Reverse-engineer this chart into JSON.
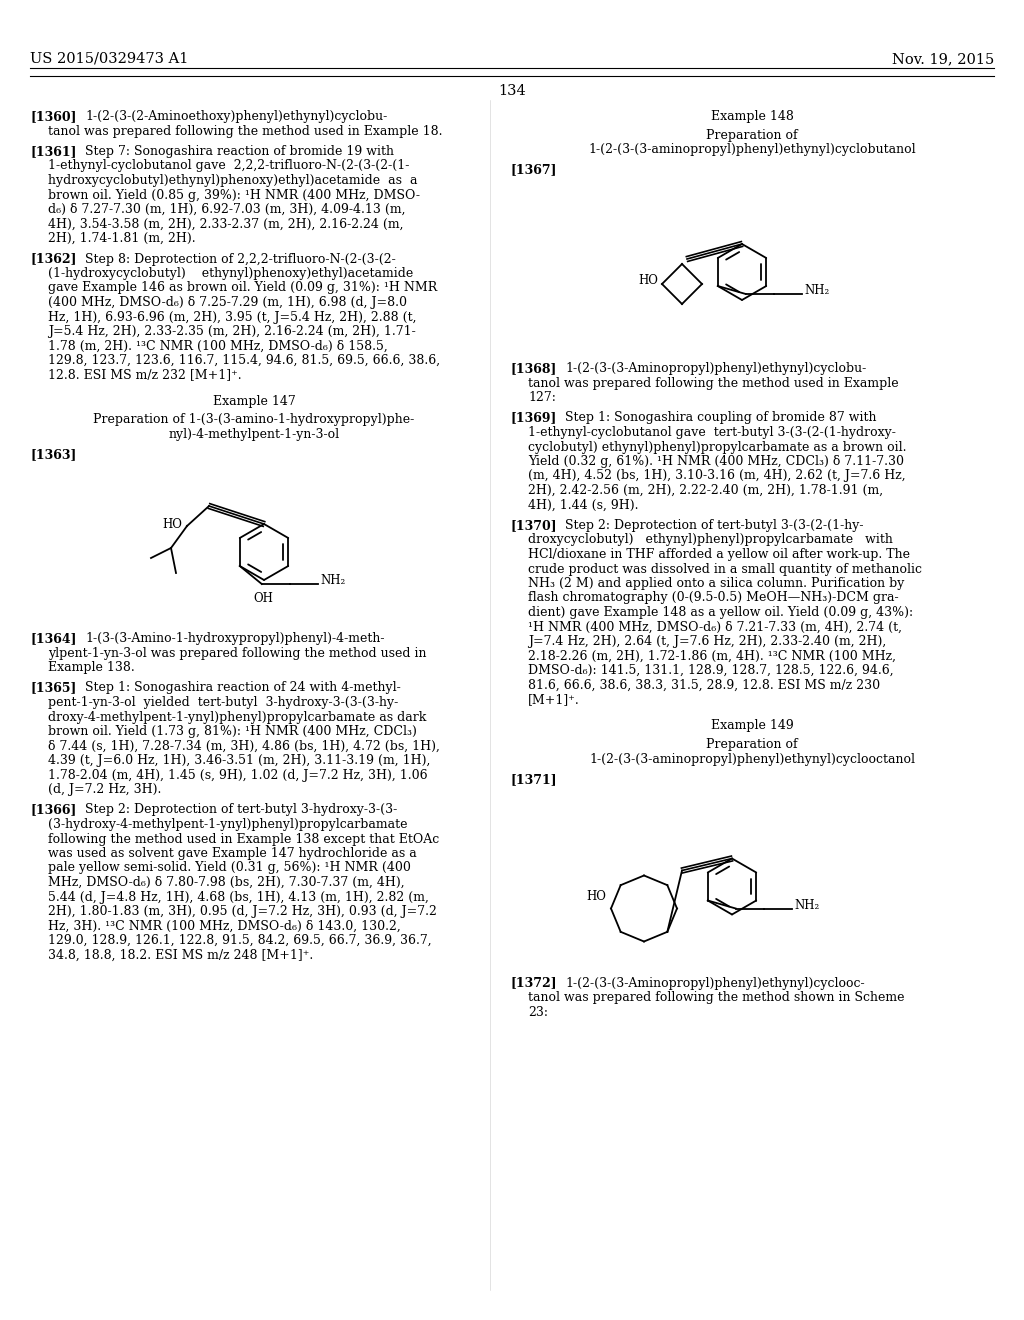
{
  "header_left": "US 2015/0329473 A1",
  "header_right": "Nov. 19, 2015",
  "page_number": "134",
  "background_color": "#ffffff"
}
